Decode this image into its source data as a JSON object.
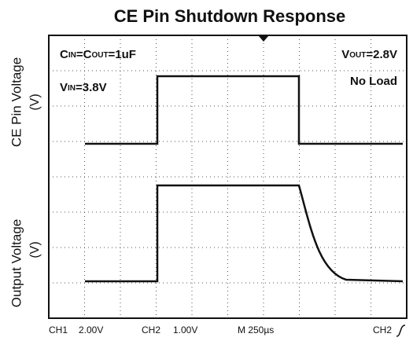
{
  "title": "CE Pin Shutdown Response",
  "axis_labels": {
    "top": "CE Pin Voltage",
    "top_unit": "(V)",
    "bottom": "Output Voltage",
    "bottom_unit": "(V)"
  },
  "annotations": {
    "cap": [
      "C",
      "IN",
      "=C",
      "OUT",
      "=1uF"
    ],
    "vin": [
      "V",
      "IN",
      "=3.8V"
    ],
    "vout": [
      "V",
      "OUT",
      "=2.8V"
    ],
    "load": "No Load"
  },
  "footer": {
    "ch1": "CH1",
    "ch1_scale": "2.00V",
    "ch2": "CH2",
    "ch2_scale": "1.00V",
    "time": "M 250µs",
    "trigger": "CH2"
  }
}
